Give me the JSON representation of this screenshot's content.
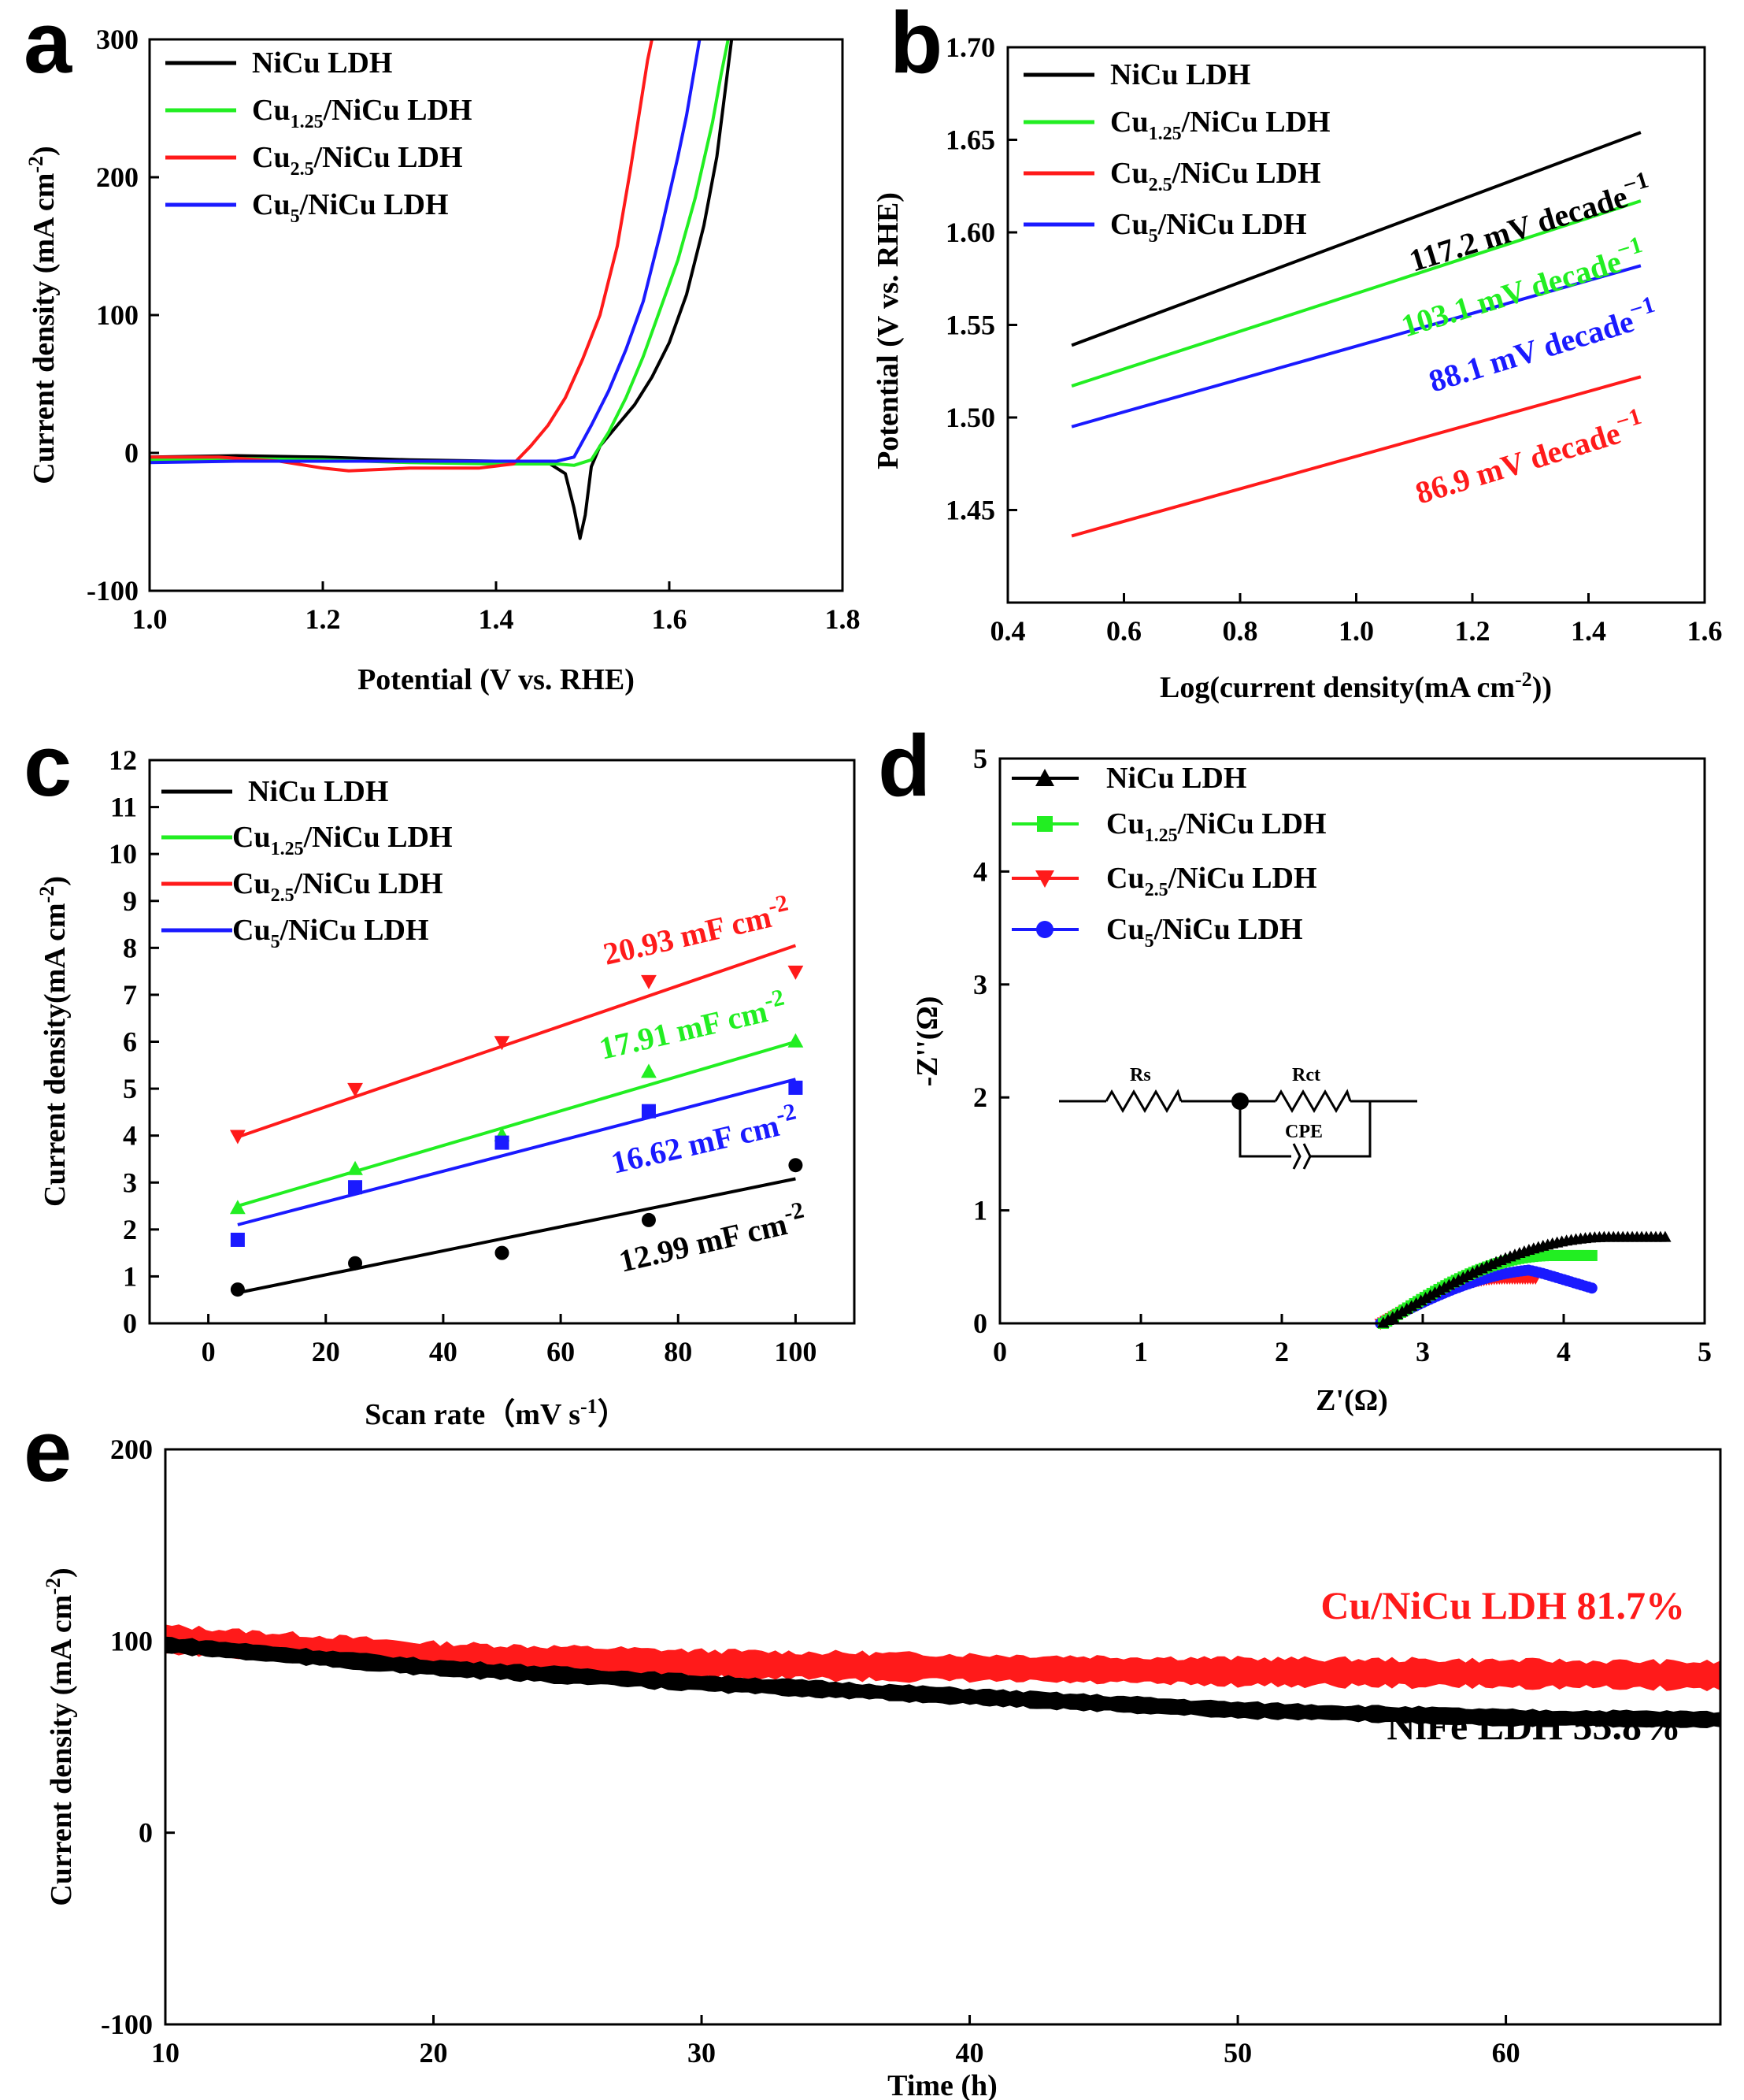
{
  "colors": {
    "black": "#000000",
    "green": "#22ee22",
    "red": "#ff1a1a",
    "blue": "#1a1aff",
    "axis": "#000000"
  },
  "series_names": {
    "s1": "NiCu LDH",
    "s2_pre": "Cu",
    "s2_sub": "1.25",
    "s2_post": "/NiCu LDH",
    "s3_pre": "Cu",
    "s3_sub": "2.5",
    "s3_post": "/NiCu LDH",
    "s4_pre": "Cu",
    "s4_sub": "5",
    "s4_post": "/NiCu LDH"
  },
  "chart_data": [
    {
      "panel": "a",
      "type": "line",
      "xlabel": "Potential (V vs. RHE)",
      "ylabel": "Current density (mA cm",
      "ylabel_sup": "-2",
      "ylabel_end": ")",
      "xlim": [
        1.0,
        1.8
      ],
      "ylim": [
        -100,
        300
      ],
      "xticks": [
        "1.0",
        "1.2",
        "1.4",
        "1.6",
        "1.8"
      ],
      "yticks": [
        "-100",
        "0",
        "100",
        "200",
        "300"
      ],
      "series": [
        {
          "name": "NiCu LDH",
          "color": "#000000",
          "points": [
            [
              1.0,
              -3
            ],
            [
              1.1,
              -2
            ],
            [
              1.2,
              -3
            ],
            [
              1.3,
              -5
            ],
            [
              1.4,
              -6
            ],
            [
              1.46,
              -7
            ],
            [
              1.48,
              -15
            ],
            [
              1.49,
              -40
            ],
            [
              1.497,
              -62
            ],
            [
              1.503,
              -45
            ],
            [
              1.51,
              -10
            ],
            [
              1.52,
              5
            ],
            [
              1.54,
              20
            ],
            [
              1.56,
              35
            ],
            [
              1.58,
              55
            ],
            [
              1.6,
              80
            ],
            [
              1.62,
              115
            ],
            [
              1.64,
              165
            ],
            [
              1.655,
              215
            ],
            [
              1.665,
              265
            ],
            [
              1.672,
              300
            ]
          ]
        },
        {
          "name": "Cu1.25/NiCu LDH",
          "color": "#22ee22",
          "points": [
            [
              1.0,
              -5
            ],
            [
              1.1,
              -4
            ],
            [
              1.2,
              -5
            ],
            [
              1.3,
              -7
            ],
            [
              1.4,
              -8
            ],
            [
              1.47,
              -8
            ],
            [
              1.49,
              -9
            ],
            [
              1.51,
              -5
            ],
            [
              1.53,
              15
            ],
            [
              1.55,
              40
            ],
            [
              1.57,
              70
            ],
            [
              1.59,
              105
            ],
            [
              1.61,
              140
            ],
            [
              1.63,
              185
            ],
            [
              1.65,
              240
            ],
            [
              1.66,
              275
            ],
            [
              1.668,
              300
            ]
          ]
        },
        {
          "name": "Cu2.5/NiCu LDH",
          "color": "#ff1a1a",
          "points": [
            [
              1.0,
              -3
            ],
            [
              1.08,
              -3
            ],
            [
              1.15,
              -6
            ],
            [
              1.2,
              -11
            ],
            [
              1.23,
              -13
            ],
            [
              1.3,
              -11
            ],
            [
              1.38,
              -11
            ],
            [
              1.42,
              -8
            ],
            [
              1.44,
              5
            ],
            [
              1.46,
              20
            ],
            [
              1.48,
              40
            ],
            [
              1.5,
              68
            ],
            [
              1.52,
              100
            ],
            [
              1.54,
              150
            ],
            [
              1.555,
              205
            ],
            [
              1.565,
              245
            ],
            [
              1.575,
              285
            ],
            [
              1.58,
              300
            ]
          ]
        },
        {
          "name": "Cu5/NiCu LDH",
          "color": "#1a1aff",
          "points": [
            [
              1.0,
              -7
            ],
            [
              1.1,
              -6
            ],
            [
              1.2,
              -6
            ],
            [
              1.3,
              -6
            ],
            [
              1.4,
              -6
            ],
            [
              1.47,
              -6
            ],
            [
              1.49,
              -3
            ],
            [
              1.51,
              20
            ],
            [
              1.53,
              45
            ],
            [
              1.55,
              75
            ],
            [
              1.57,
              110
            ],
            [
              1.59,
              160
            ],
            [
              1.61,
              215
            ],
            [
              1.62,
              245
            ],
            [
              1.635,
              300
            ]
          ]
        }
      ]
    },
    {
      "panel": "b",
      "type": "line",
      "xlabel": "Log(current density(mA cm",
      "xlabel_sup": "-2",
      "xlabel_end": "))",
      "ylabel": "Potential (V vs. RHE)",
      "xlim": [
        0.4,
        1.6
      ],
      "ylim": [
        1.4,
        1.7
      ],
      "xticks": [
        "0.4",
        "0.6",
        "0.8",
        "1.0",
        "1.2",
        "1.4",
        "1.6"
      ],
      "yticks": [
        "1.45",
        "1.50",
        "1.55",
        "1.60",
        "1.65",
        "1.70"
      ],
      "series": [
        {
          "name": "NiCu LDH",
          "color": "#000000",
          "x": [
            0.51,
            1.49
          ],
          "y": [
            1.539,
            1.654
          ]
        },
        {
          "name": "Cu1.25/NiCu LDH",
          "color": "#22ee22",
          "x": [
            0.51,
            1.49
          ],
          "y": [
            1.517,
            1.617
          ]
        },
        {
          "name": "Cu2.5/NiCu LDH",
          "color": "#ff1a1a",
          "x": [
            0.51,
            1.49
          ],
          "y": [
            1.436,
            1.522
          ]
        },
        {
          "name": "Cu5/NiCu LDH",
          "color": "#1a1aff",
          "x": [
            0.51,
            1.49
          ],
          "y": [
            1.495,
            1.582
          ]
        }
      ],
      "annotations": [
        {
          "text": "117.2 mV decade",
          "sup": "−1",
          "color": "#000000"
        },
        {
          "text": "103.1 mV decade",
          "sup": "−1",
          "color": "#22ee22"
        },
        {
          "text": "88.1 mV decade",
          "sup": "−1",
          "color": "#1a1aff"
        },
        {
          "text": "86.9 mV decade",
          "sup": "−1",
          "color": "#ff1a1a"
        }
      ]
    },
    {
      "panel": "c",
      "type": "scatter",
      "xlabel": "Scan rate（mV s",
      "xlabel_sup": "-1",
      "xlabel_end": "）",
      "ylabel": "Current density(mA cm",
      "ylabel_sup": "-2",
      "ylabel_end": ")",
      "xlim": [
        -10,
        110
      ],
      "ylim": [
        0,
        12
      ],
      "xticks": [
        "0",
        "20",
        "40",
        "60",
        "80",
        "100"
      ],
      "yticks": [
        "0",
        "1",
        "2",
        "3",
        "4",
        "5",
        "6",
        "7",
        "8",
        "9",
        "10",
        "11",
        "12"
      ],
      "x": [
        5,
        25,
        50,
        75,
        100
      ],
      "series": [
        {
          "name": "NiCu LDH",
          "color": "#000000",
          "marker": "circle",
          "values": [
            0.72,
            1.28,
            1.5,
            2.2,
            3.37
          ],
          "fit": [
            [
              5,
              0.65
            ],
            [
              100,
              3.08
            ]
          ]
        },
        {
          "name": "Cu1.25/NiCu LDH",
          "color": "#22ee22",
          "marker": "triangle",
          "values": [
            2.45,
            3.28,
            4.0,
            5.35,
            6.0
          ],
          "fit": [
            [
              5,
              2.5
            ],
            [
              100,
              6.0
            ]
          ]
        },
        {
          "name": "Cu2.5/NiCu LDH",
          "color": "#ff1a1a",
          "marker": "triangle-down",
          "values": [
            4.0,
            5.0,
            6.0,
            7.3,
            7.5
          ],
          "fit": [
            [
              5,
              3.97
            ],
            [
              100,
              8.05
            ]
          ]
        },
        {
          "name": "Cu5/NiCu LDH",
          "color": "#1a1aff",
          "marker": "square",
          "values": [
            1.78,
            2.9,
            3.85,
            4.52,
            5.02
          ],
          "fit": [
            [
              5,
              2.1
            ],
            [
              100,
              5.2
            ]
          ]
        }
      ],
      "annotations": [
        {
          "text": "20.93 mF cm",
          "sup": "-2",
          "color": "#ff1a1a"
        },
        {
          "text": "17.91 mF cm",
          "sup": "-2",
          "color": "#22ee22"
        },
        {
          "text": "16.62 mF cm",
          "sup": "-2",
          "color": "#1a1aff"
        },
        {
          "text": "12.99 mF cm",
          "sup": "-2",
          "color": "#000000"
        }
      ]
    },
    {
      "panel": "d",
      "type": "scatter",
      "xlabel": "Z'(Ω)",
      "ylabel": "-Z''(Ω)",
      "xlim": [
        0,
        5
      ],
      "ylim": [
        0,
        5
      ],
      "xticks": [
        "0",
        "1",
        "2",
        "3",
        "4",
        "5"
      ],
      "yticks": [
        "0",
        "1",
        "2",
        "3",
        "4",
        "5"
      ],
      "series": [
        {
          "name": "NiCu LDH",
          "color": "#000000",
          "marker": "triangle",
          "start": 2.72,
          "end": 4.72,
          "peak": 0.76
        },
        {
          "name": "Cu1.25/NiCu LDH",
          "color": "#22ee22",
          "marker": "square",
          "start": 2.72,
          "end": 4.2,
          "peak": 0.6
        },
        {
          "name": "Cu2.5/NiCu LDH",
          "color": "#ff1a1a",
          "marker": "triangle-down",
          "start": 2.7,
          "end": 3.8,
          "peak": 0.4
        },
        {
          "name": "Cu5/NiCu LDH",
          "color": "#1a1aff",
          "marker": "circle",
          "start": 2.7,
          "end": 4.2,
          "peak": 0.48
        }
      ],
      "circuit": {
        "r1": "Rs",
        "r2": "Rct",
        "c": "CPE"
      }
    },
    {
      "panel": "e",
      "type": "line",
      "xlabel": "Time (h)",
      "ylabel": "Current density (mA cm",
      "ylabel_sup": "-2",
      "ylabel_end": ")",
      "xlim": [
        10,
        68
      ],
      "ylim": [
        -100,
        200
      ],
      "xticks": [
        "10",
        "20",
        "30",
        "40",
        "50",
        "60"
      ],
      "yticks": [
        "-100",
        "0",
        "100",
        "200"
      ],
      "series": [
        {
          "name": "Cu/NiCu LDH",
          "color": "#ff1a1a",
          "label": "Cu/NiCu LDH  81.7%",
          "points": [
            [
              10,
              101
            ],
            [
              20,
              92
            ],
            [
              30,
              88
            ],
            [
              40,
              86
            ],
            [
              50,
              84
            ],
            [
              60,
              83
            ],
            [
              68,
              82
            ]
          ]
        },
        {
          "name": "NiFe LDH",
          "color": "#000000",
          "label": "NiFe LDH  55.8%",
          "points": [
            [
              10,
              98
            ],
            [
              20,
              86
            ],
            [
              30,
              78
            ],
            [
              40,
              71
            ],
            [
              50,
              64
            ],
            [
              60,
              60
            ],
            [
              68,
              59
            ]
          ]
        }
      ]
    }
  ],
  "panel_letters": {
    "a": "a",
    "b": "b",
    "c": "c",
    "d": "d",
    "e": "e"
  }
}
